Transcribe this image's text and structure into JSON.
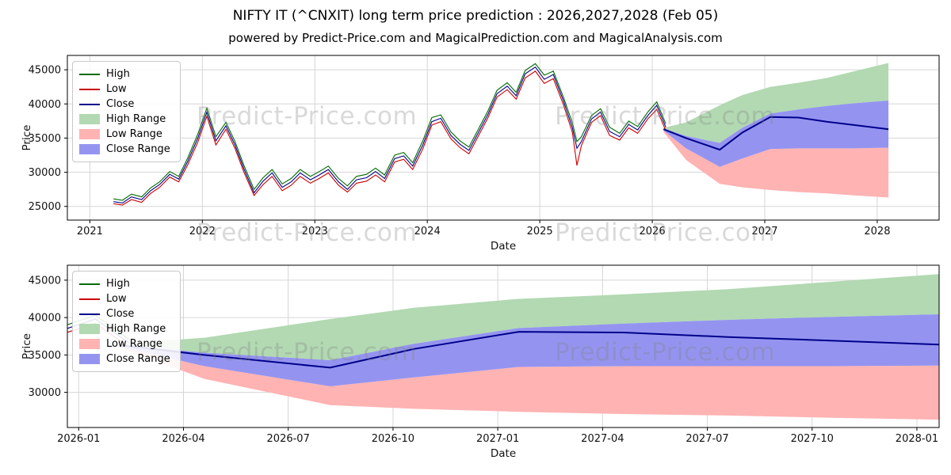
{
  "title": "NIFTY IT (^CNXIT) long term price prediction : 2026,2027,2028 (Feb 05)",
  "subtitle": "powered by Predict-Price.com and MagicalPrediction.com and MagicalAnalysis.com",
  "watermark_text": "Predict-Price.com",
  "colors": {
    "high": "#006b00",
    "low": "#cc0000",
    "close": "#00008b",
    "high_range": "#b2d9b2",
    "low_range": "#ffb3b3",
    "close_range": "#9494f0",
    "grid": "#d6d6d6",
    "spine": "#000000",
    "tick_text": "#111111"
  },
  "legend": [
    {
      "label": "High",
      "type": "line",
      "color_key": "high"
    },
    {
      "label": "Low",
      "type": "line",
      "color_key": "low"
    },
    {
      "label": "Close",
      "type": "line",
      "color_key": "close"
    },
    {
      "label": "High Range",
      "type": "patch",
      "color_key": "high_range"
    },
    {
      "label": "Low Range",
      "type": "patch",
      "color_key": "low_range"
    },
    {
      "label": "Close Range",
      "type": "patch",
      "color_key": "close_range"
    }
  ],
  "chart_data": [
    {
      "type": "line",
      "name": "history-and-forecast-chart",
      "xlabel": "Date",
      "ylabel": "Price",
      "legend_position": "upper left",
      "grid": true,
      "xlim": [
        2020.8,
        2028.55
      ],
      "ylim": [
        23000,
        47100
      ],
      "x_ticks": [
        {
          "v": 2021,
          "label": "2021"
        },
        {
          "v": 2022,
          "label": "2022"
        },
        {
          "v": 2023,
          "label": "2023"
        },
        {
          "v": 2024,
          "label": "2024"
        },
        {
          "v": 2025,
          "label": "2025"
        },
        {
          "v": 2026,
          "label": "2026"
        },
        {
          "v": 2027,
          "label": "2027"
        },
        {
          "v": 2028,
          "label": "2028"
        }
      ],
      "y_ticks": [
        {
          "v": 25000,
          "label": "25000"
        },
        {
          "v": 30000,
          "label": "30000"
        },
        {
          "v": 35000,
          "label": "35000"
        },
        {
          "v": 40000,
          "label": "40000"
        },
        {
          "v": 45000,
          "label": "45000"
        }
      ],
      "history": {
        "x": [
          2021.21,
          2021.29,
          2021.37,
          2021.46,
          2021.54,
          2021.62,
          2021.71,
          2021.79,
          2021.87,
          2021.96,
          2022.04,
          2022.12,
          2022.21,
          2022.29,
          2022.37,
          2022.46,
          2022.54,
          2022.62,
          2022.71,
          2022.79,
          2022.87,
          2022.96,
          2023.04,
          2023.12,
          2023.21,
          2023.29,
          2023.37,
          2023.46,
          2023.54,
          2023.62,
          2023.71,
          2023.79,
          2023.87,
          2023.96,
          2024.04,
          2024.12,
          2024.21,
          2024.29,
          2024.37,
          2024.46,
          2024.54,
          2024.62,
          2024.71,
          2024.79,
          2024.87,
          2024.96,
          2025.04,
          2025.12,
          2025.21,
          2025.29,
          2025.33,
          2025.37,
          2025.46,
          2025.54,
          2025.62,
          2025.71,
          2025.79,
          2025.87,
          2025.96,
          2026.04,
          2026.12
        ],
        "high": [
          26100,
          25900,
          26800,
          26400,
          27700,
          28600,
          30100,
          29400,
          32100,
          35600,
          39400,
          35200,
          37300,
          34500,
          31000,
          27500,
          29200,
          30400,
          28300,
          29100,
          30400,
          29400,
          30100,
          30900,
          29100,
          28000,
          29400,
          29700,
          30600,
          29600,
          32500,
          32900,
          31400,
          34600,
          38000,
          38400,
          35900,
          34600,
          33700,
          36500,
          39000,
          42000,
          43100,
          41700,
          44900,
          45900,
          44200,
          44800,
          41000,
          37200,
          34500,
          35200,
          38300,
          39300,
          36600,
          35700,
          37500,
          36700,
          38800,
          40300,
          37100
        ],
        "low": [
          25400,
          25200,
          26000,
          25600,
          26900,
          27800,
          29300,
          28600,
          31100,
          34400,
          38200,
          34000,
          36300,
          33500,
          30000,
          26600,
          28200,
          29400,
          27300,
          28100,
          29400,
          28400,
          29100,
          29900,
          28100,
          27100,
          28400,
          28700,
          29600,
          28600,
          31500,
          31900,
          30400,
          33400,
          36900,
          37400,
          34900,
          33600,
          32700,
          35500,
          38000,
          41000,
          42100,
          40700,
          43800,
          44800,
          43000,
          43700,
          39900,
          35800,
          31000,
          33900,
          37300,
          38300,
          35400,
          34700,
          36500,
          35700,
          37800,
          39200,
          36100
        ],
        "close": [
          25700,
          25500,
          26400,
          26000,
          27300,
          28200,
          29700,
          29000,
          31600,
          35000,
          38800,
          34600,
          36800,
          34000,
          30500,
          27000,
          28700,
          29900,
          27800,
          28600,
          29900,
          28900,
          29600,
          30400,
          28600,
          27500,
          28900,
          29200,
          30100,
          29100,
          32000,
          32400,
          30900,
          34000,
          37400,
          37900,
          35400,
          34100,
          33200,
          36000,
          38500,
          41500,
          42600,
          41200,
          44400,
          45400,
          43600,
          44300,
          40500,
          36500,
          33500,
          34500,
          37800,
          38800,
          36000,
          35200,
          37000,
          36200,
          38300,
          39800,
          36600
        ]
      },
      "forecast": {
        "x": [
          2026.1,
          2026.3,
          2026.6,
          2026.8,
          2027.05,
          2027.3,
          2027.55,
          2027.8,
          2028.1
        ],
        "close": [
          36300,
          35000,
          33300,
          35800,
          38100,
          38000,
          37400,
          36900,
          36300
        ],
        "close_upper": [
          36400,
          35300,
          34300,
          36500,
          38600,
          39200,
          39700,
          40100,
          40500
        ],
        "close_lower": [
          36100,
          33500,
          30800,
          32000,
          33400,
          33500,
          33500,
          33500,
          33600
        ],
        "high_upper": [
          36500,
          37300,
          39800,
          41300,
          42500,
          43100,
          43800,
          44800,
          46000
        ],
        "low_lower": [
          35900,
          31800,
          28300,
          27800,
          27400,
          27100,
          26900,
          26600,
          26300
        ]
      }
    },
    {
      "type": "line",
      "name": "forecast-detail-chart",
      "xlabel": "Date",
      "ylabel": "Price",
      "legend_position": "upper left",
      "grid": true,
      "xlim": [
        2025.973,
        2028.053
      ],
      "ylim": [
        25300,
        47000
      ],
      "x_ticks": [
        {
          "v": 2026.0,
          "label": "2026-01"
        },
        {
          "v": 2026.25,
          "label": "2026-04"
        },
        {
          "v": 2026.5,
          "label": "2026-07"
        },
        {
          "v": 2026.75,
          "label": "2026-10"
        },
        {
          "v": 2027.0,
          "label": "2027-01"
        },
        {
          "v": 2027.25,
          "label": "2027-04"
        },
        {
          "v": 2027.5,
          "label": "2027-07"
        },
        {
          "v": 2027.75,
          "label": "2027-10"
        },
        {
          "v": 2028.0,
          "label": "2028-01"
        }
      ],
      "y_ticks": [
        {
          "v": 30000,
          "label": "30000"
        },
        {
          "v": 35000,
          "label": "35000"
        },
        {
          "v": 40000,
          "label": "40000"
        },
        {
          "v": 45000,
          "label": "45000"
        }
      ],
      "history": {
        "x": [
          2025.96,
          2026.04,
          2026.12
        ],
        "high": [
          38800,
          40300,
          37100
        ],
        "low": [
          37800,
          39200,
          36100
        ],
        "close": [
          38300,
          39800,
          36600
        ]
      },
      "forecast": {
        "x": [
          2026.1,
          2026.3,
          2026.6,
          2026.8,
          2027.05,
          2027.3,
          2027.55,
          2027.8,
          2028.1
        ],
        "close": [
          36300,
          35000,
          33300,
          35800,
          38100,
          38000,
          37400,
          36900,
          36300
        ],
        "close_upper": [
          36400,
          35300,
          34300,
          36500,
          38600,
          39200,
          39700,
          40100,
          40500
        ],
        "close_lower": [
          36100,
          33500,
          30800,
          32000,
          33400,
          33500,
          33500,
          33500,
          33600
        ],
        "high_upper": [
          36500,
          37300,
          39800,
          41300,
          42500,
          43100,
          43800,
          44800,
          46000
        ],
        "low_lower": [
          35900,
          31800,
          28300,
          27800,
          27400,
          27100,
          26900,
          26600,
          26300
        ]
      }
    }
  ]
}
